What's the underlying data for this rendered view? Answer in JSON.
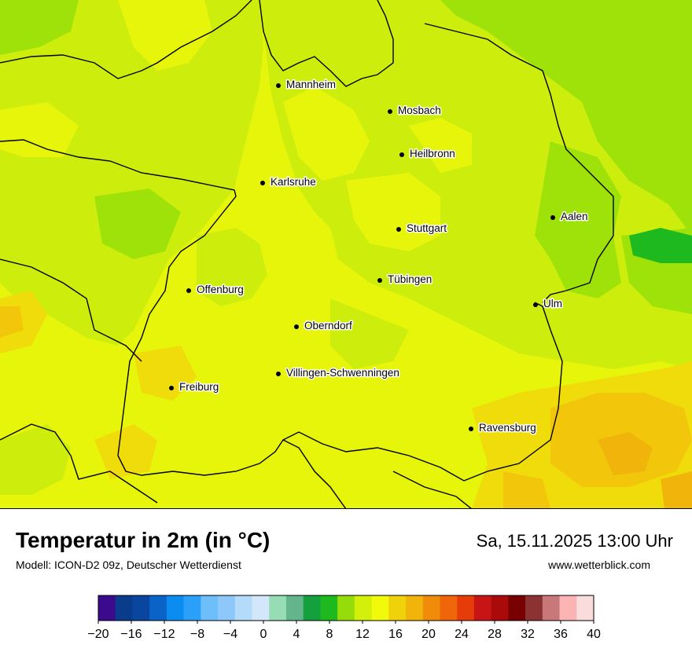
{
  "map": {
    "title": "Temperatur in 2m (in °C)",
    "model": "Modell: ICON-D2 09z, Deutscher Wetterdienst",
    "valid_time": "Sa, 15.11.2025 13:00 Uhr",
    "website": "www.wetterblick.com",
    "cities": [
      {
        "name": "Mannheim"
      },
      {
        "name": "Mosbach"
      },
      {
        "name": "Heilbronn"
      },
      {
        "name": "Karlsruhe"
      },
      {
        "name": "Aalen"
      },
      {
        "name": "Stuttgart"
      },
      {
        "name": "Tübingen"
      },
      {
        "name": "Offenburg"
      },
      {
        "name": "Ulm"
      },
      {
        "name": "Oberndorf"
      },
      {
        "name": "Villingen-Schwenningen"
      },
      {
        "name": "Freiburg"
      },
      {
        "name": "Ravensburg"
      }
    ]
  },
  "legend": {
    "unit": "°C",
    "ticks": [
      "−20",
      "−16",
      "−12",
      "−8",
      "−4",
      "0",
      "4",
      "8",
      "12",
      "16",
      "20",
      "24",
      "28",
      "32",
      "36",
      "40"
    ],
    "colors": [
      "#3c0a8c",
      "#0a3c8c",
      "#0a46a0",
      "#0a64c8",
      "#0a8cf0",
      "#2aa0fa",
      "#6ebefa",
      "#8ec8fa",
      "#b4dcfa",
      "#d2e8fa",
      "#96dcb4",
      "#64b48c",
      "#14a03c",
      "#1eb91e",
      "#96dc0a",
      "#d2f00a",
      "#f0fa0a",
      "#f0d20a",
      "#f0b40a",
      "#f08c0a",
      "#f0640a",
      "#e63c0a",
      "#c81414",
      "#aa0a0a",
      "#780000",
      "#8c3232",
      "#c87878",
      "#fab4b4",
      "#fadcdc"
    ]
  }
}
